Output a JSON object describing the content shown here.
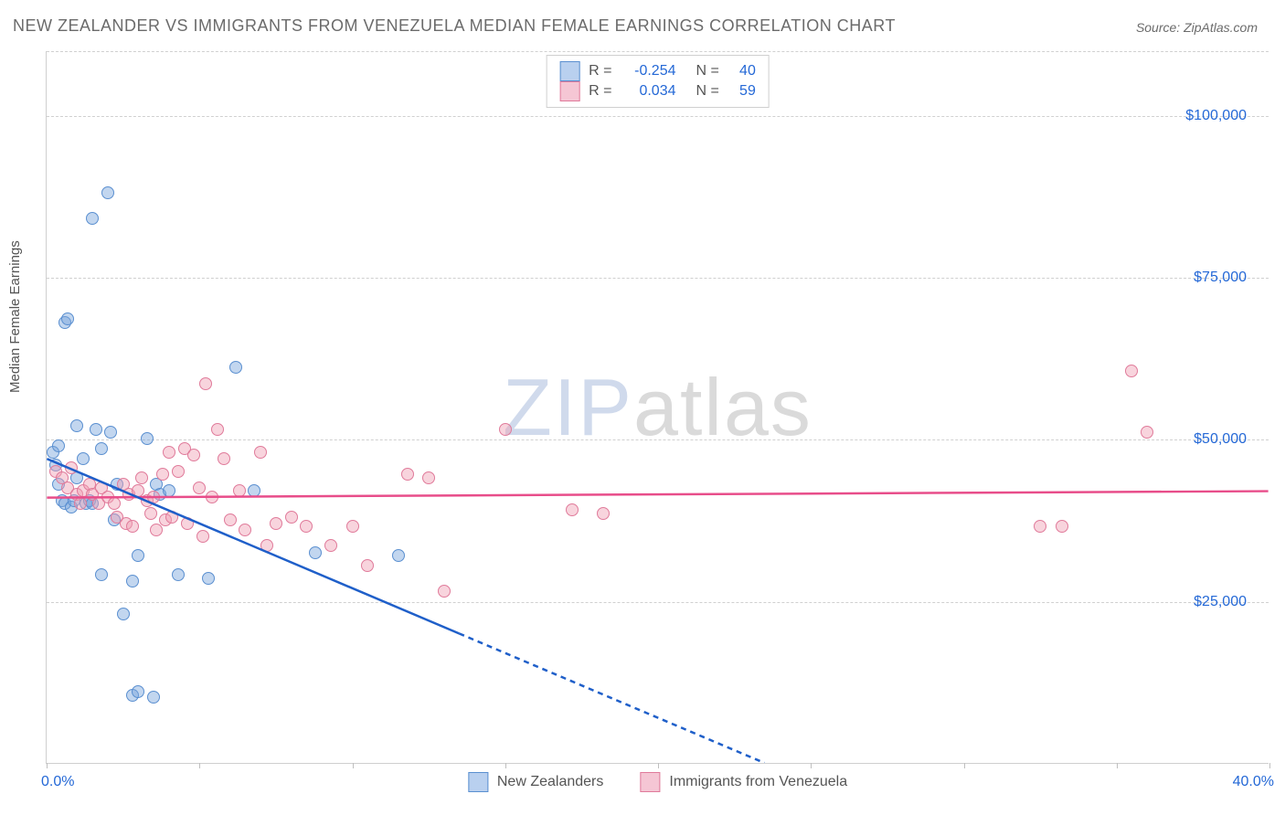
{
  "title": "NEW ZEALANDER VS IMMIGRANTS FROM VENEZUELA MEDIAN FEMALE EARNINGS CORRELATION CHART",
  "source_label": "Source:",
  "source_value": "ZipAtlas.com",
  "ylabel": "Median Female Earnings",
  "watermark": {
    "part1": "ZIP",
    "part2": "atlas"
  },
  "chart": {
    "type": "scatter",
    "background_color": "#ffffff",
    "grid_color": "#d0d0d0",
    "xlim": [
      0,
      40
    ],
    "ylim": [
      0,
      110000
    ],
    "xtick_positions": [
      0,
      5,
      10,
      15,
      20,
      25,
      30,
      35,
      40
    ],
    "xtick_labels": {
      "0": "0.0%",
      "40": "40.0%"
    },
    "ytick_positions": [
      25000,
      50000,
      75000,
      100000
    ],
    "ytick_labels": [
      "$25,000",
      "$50,000",
      "$75,000",
      "$100,000"
    ],
    "label_color": "#2468d6",
    "label_fontsize": 16,
    "title_fontsize": 18,
    "title_color": "#6b6b6b"
  },
  "series": [
    {
      "name": "New Zealanders",
      "fill_color": "rgba(120,165,220,0.45)",
      "border_color": "#5a8fd0",
      "swatch_fill": "#b9d0ef",
      "swatch_border": "#5a8fd0",
      "line_color": "#1f5fc9",
      "r": "-0.254",
      "n": "40",
      "trend": {
        "x1": 0,
        "y1": 47000,
        "x_solid_end": 13.5,
        "y_solid_end": 20000,
        "x2": 23.5,
        "y2": 0
      },
      "points": [
        [
          0.2,
          48000
        ],
        [
          0.3,
          46000
        ],
        [
          0.4,
          49000
        ],
        [
          0.4,
          43000
        ],
        [
          0.5,
          40500
        ],
        [
          0.6,
          40000
        ],
        [
          0.6,
          68000
        ],
        [
          0.7,
          68500
        ],
        [
          0.8,
          39500
        ],
        [
          0.9,
          40500
        ],
        [
          1.0,
          52000
        ],
        [
          1.0,
          44000
        ],
        [
          1.2,
          47000
        ],
        [
          1.3,
          40000
        ],
        [
          1.4,
          40500
        ],
        [
          1.5,
          84000
        ],
        [
          1.5,
          40000
        ],
        [
          1.6,
          51500
        ],
        [
          1.8,
          29000
        ],
        [
          1.8,
          48500
        ],
        [
          2.0,
          88000
        ],
        [
          2.1,
          51000
        ],
        [
          2.2,
          37500
        ],
        [
          2.3,
          43000
        ],
        [
          2.5,
          23000
        ],
        [
          2.8,
          28000
        ],
        [
          2.8,
          10500
        ],
        [
          3.0,
          11000
        ],
        [
          3.0,
          32000
        ],
        [
          3.3,
          50000
        ],
        [
          3.5,
          10200
        ],
        [
          3.6,
          43000
        ],
        [
          3.7,
          41500
        ],
        [
          4.0,
          42000
        ],
        [
          4.3,
          29000
        ],
        [
          5.3,
          28500
        ],
        [
          6.2,
          61000
        ],
        [
          6.8,
          42000
        ],
        [
          8.8,
          32500
        ],
        [
          11.5,
          32000
        ]
      ]
    },
    {
      "name": "Immigrants from Venezuela",
      "fill_color": "rgba(240,160,180,0.45)",
      "border_color": "#e07a9a",
      "swatch_fill": "#f5c6d4",
      "swatch_border": "#e07a9a",
      "line_color": "#e84d8a",
      "r": "0.034",
      "n": "59",
      "trend": {
        "x1": 0,
        "y1": 41000,
        "x2": 40,
        "y2": 42000
      },
      "points": [
        [
          0.3,
          45000
        ],
        [
          0.5,
          44000
        ],
        [
          0.7,
          42500
        ],
        [
          0.8,
          45500
        ],
        [
          1.0,
          41500
        ],
        [
          1.1,
          40000
        ],
        [
          1.2,
          42000
        ],
        [
          1.4,
          43000
        ],
        [
          1.5,
          41500
        ],
        [
          1.7,
          40000
        ],
        [
          1.8,
          42500
        ],
        [
          2.0,
          41000
        ],
        [
          2.2,
          40000
        ],
        [
          2.3,
          38000
        ],
        [
          2.5,
          43000
        ],
        [
          2.6,
          37000
        ],
        [
          2.7,
          41500
        ],
        [
          2.8,
          36500
        ],
        [
          3.0,
          42000
        ],
        [
          3.1,
          44000
        ],
        [
          3.3,
          40500
        ],
        [
          3.4,
          38500
        ],
        [
          3.5,
          41000
        ],
        [
          3.6,
          36000
        ],
        [
          3.8,
          44500
        ],
        [
          3.9,
          37500
        ],
        [
          4.0,
          48000
        ],
        [
          4.1,
          38000
        ],
        [
          4.3,
          45000
        ],
        [
          4.5,
          48500
        ],
        [
          4.6,
          37000
        ],
        [
          4.8,
          47500
        ],
        [
          5.0,
          42500
        ],
        [
          5.1,
          35000
        ],
        [
          5.2,
          58500
        ],
        [
          5.4,
          41000
        ],
        [
          5.6,
          51500
        ],
        [
          5.8,
          47000
        ],
        [
          6.0,
          37500
        ],
        [
          6.3,
          42000
        ],
        [
          6.5,
          36000
        ],
        [
          7.0,
          48000
        ],
        [
          7.2,
          33500
        ],
        [
          7.5,
          37000
        ],
        [
          8.0,
          38000
        ],
        [
          8.5,
          36500
        ],
        [
          9.3,
          33500
        ],
        [
          10.0,
          36500
        ],
        [
          10.5,
          30500
        ],
        [
          11.8,
          44500
        ],
        [
          12.5,
          44000
        ],
        [
          13.0,
          26500
        ],
        [
          15.0,
          51500
        ],
        [
          17.2,
          39000
        ],
        [
          18.2,
          38500
        ],
        [
          32.5,
          36500
        ],
        [
          33.2,
          36500
        ],
        [
          35.5,
          60500
        ],
        [
          36.0,
          51000
        ]
      ]
    }
  ],
  "legend_top": {
    "r_label": "R =",
    "n_label": "N ="
  }
}
